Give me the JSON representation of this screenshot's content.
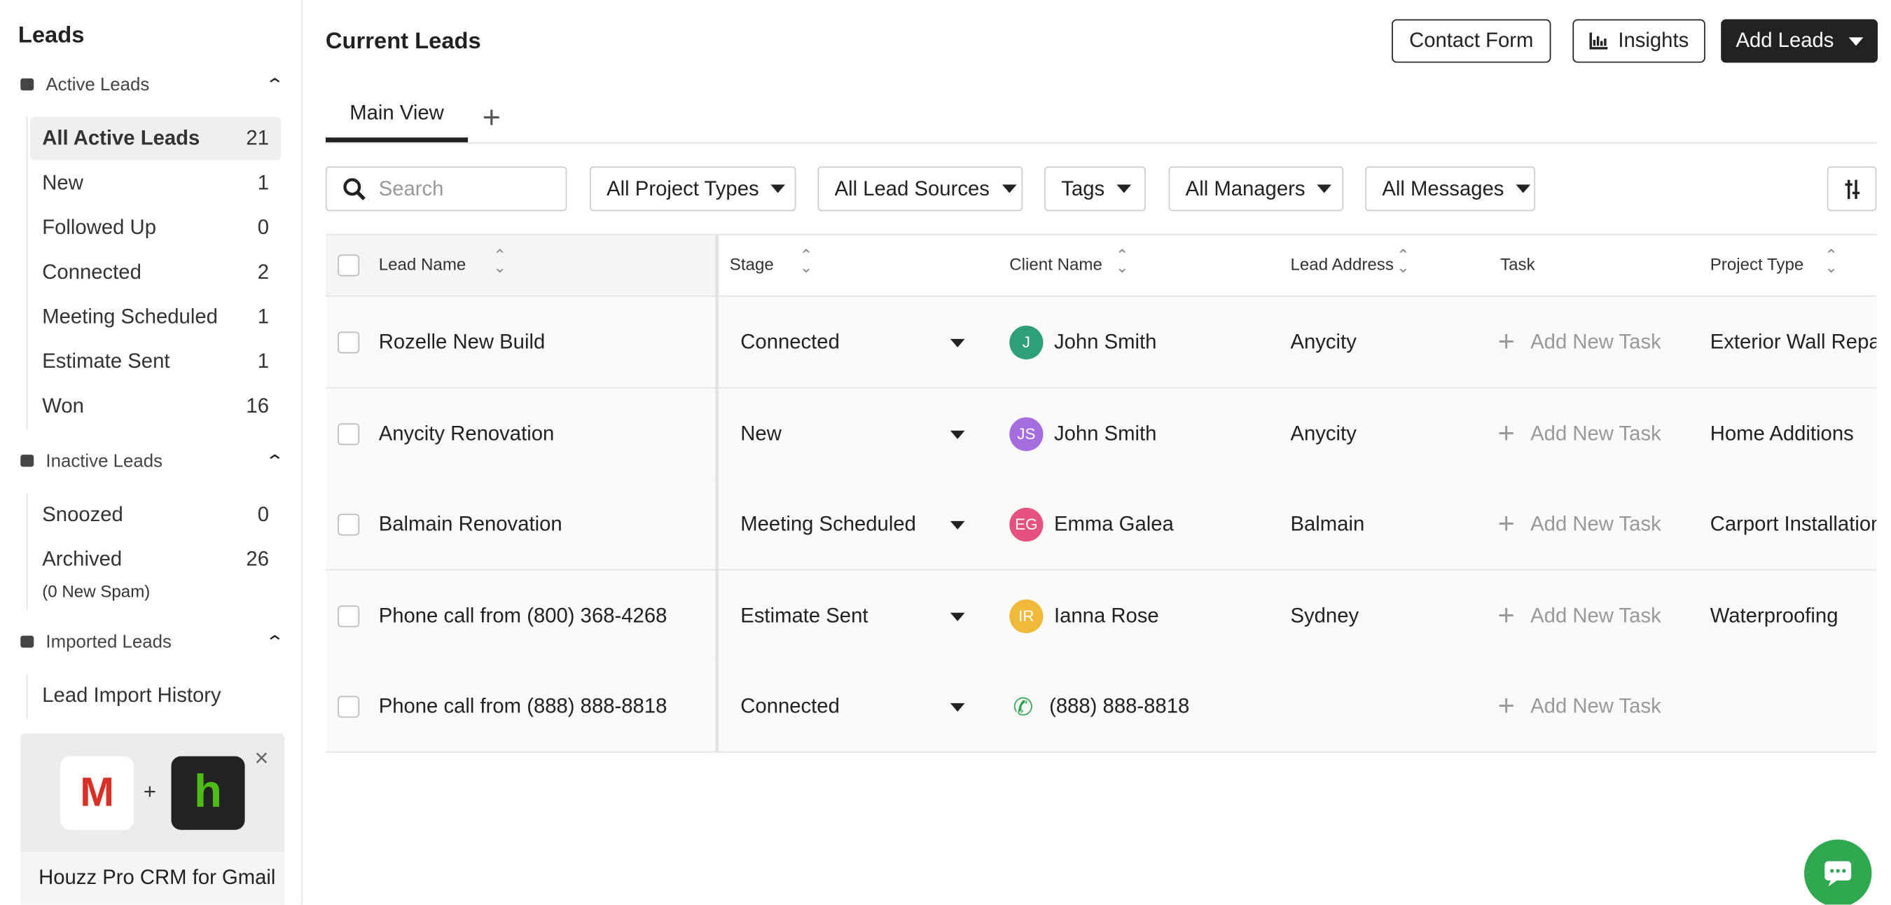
{
  "sidebar": {
    "title": "Leads",
    "groups": [
      {
        "label": "Active Leads",
        "items": [
          {
            "label": "All Active Leads",
            "count": 21
          },
          {
            "label": "New",
            "count": 1
          },
          {
            "label": "Followed Up",
            "count": 0
          },
          {
            "label": "Connected",
            "count": 2
          },
          {
            "label": "Meeting Scheduled",
            "count": 1
          },
          {
            "label": "Estimate Sent",
            "count": 1
          },
          {
            "label": "Won",
            "count": 16
          }
        ]
      },
      {
        "label": "Inactive Leads",
        "items": [
          {
            "label": "Snoozed",
            "count": 0
          },
          {
            "label": "Archived",
            "count": 26,
            "note": "(0 New Spam)"
          }
        ]
      },
      {
        "label": "Imported Leads",
        "items": [
          {
            "label": "Lead Import History"
          }
        ]
      }
    ],
    "promo": {
      "title": "Houzz Pro CRM for Gmail"
    }
  },
  "header": {
    "title": "Current Leads",
    "buttons": [
      "Contact Form",
      "Insights",
      "Add Leads"
    ]
  },
  "tabs": [
    "Main View"
  ],
  "search": {
    "placeholder": "Search"
  },
  "filters": [
    "All Project Types",
    "All Lead Sources",
    "Tags",
    "All Managers",
    "All Messages"
  ],
  "table": {
    "columns": [
      "Lead Name",
      "Stage",
      "Client Name",
      "Lead Address",
      "Task",
      "Project Type"
    ],
    "rows": [
      {
        "lead": "Rozelle New Build",
        "stage": "Connected",
        "initials": "J",
        "avatar_color": "#2f9e7a",
        "client": "John Smith",
        "address": "Anycity",
        "task": "Add New Task",
        "project": "Exterior Wall Repair"
      },
      {
        "lead": "Anycity Renovation",
        "stage": "New",
        "initials": "JS",
        "avatar_color": "#a66de0",
        "client": "John Smith",
        "address": "Anycity",
        "task": "Add New Task",
        "project": "Home Additions"
      },
      {
        "lead": "Balmain Renovation",
        "stage": "Meeting Scheduled",
        "initials": "EG",
        "avatar_color": "#e5527d",
        "client": "Emma Galea",
        "address": "Balmain",
        "task": "Add New Task",
        "project": "Carport Installation"
      },
      {
        "lead": "Phone call from (800) 368-4268",
        "stage": "Estimate Sent",
        "initials": "IR",
        "avatar_color": "#f0b93a",
        "client": "Ianna Rose",
        "address": "Sydney",
        "task": "Add New Task",
        "project": "Waterproofing"
      },
      {
        "lead": "Phone call from (888) 888-8818",
        "stage": "Connected",
        "client": "(888) 888-8818",
        "task": "Add New Task"
      }
    ]
  }
}
